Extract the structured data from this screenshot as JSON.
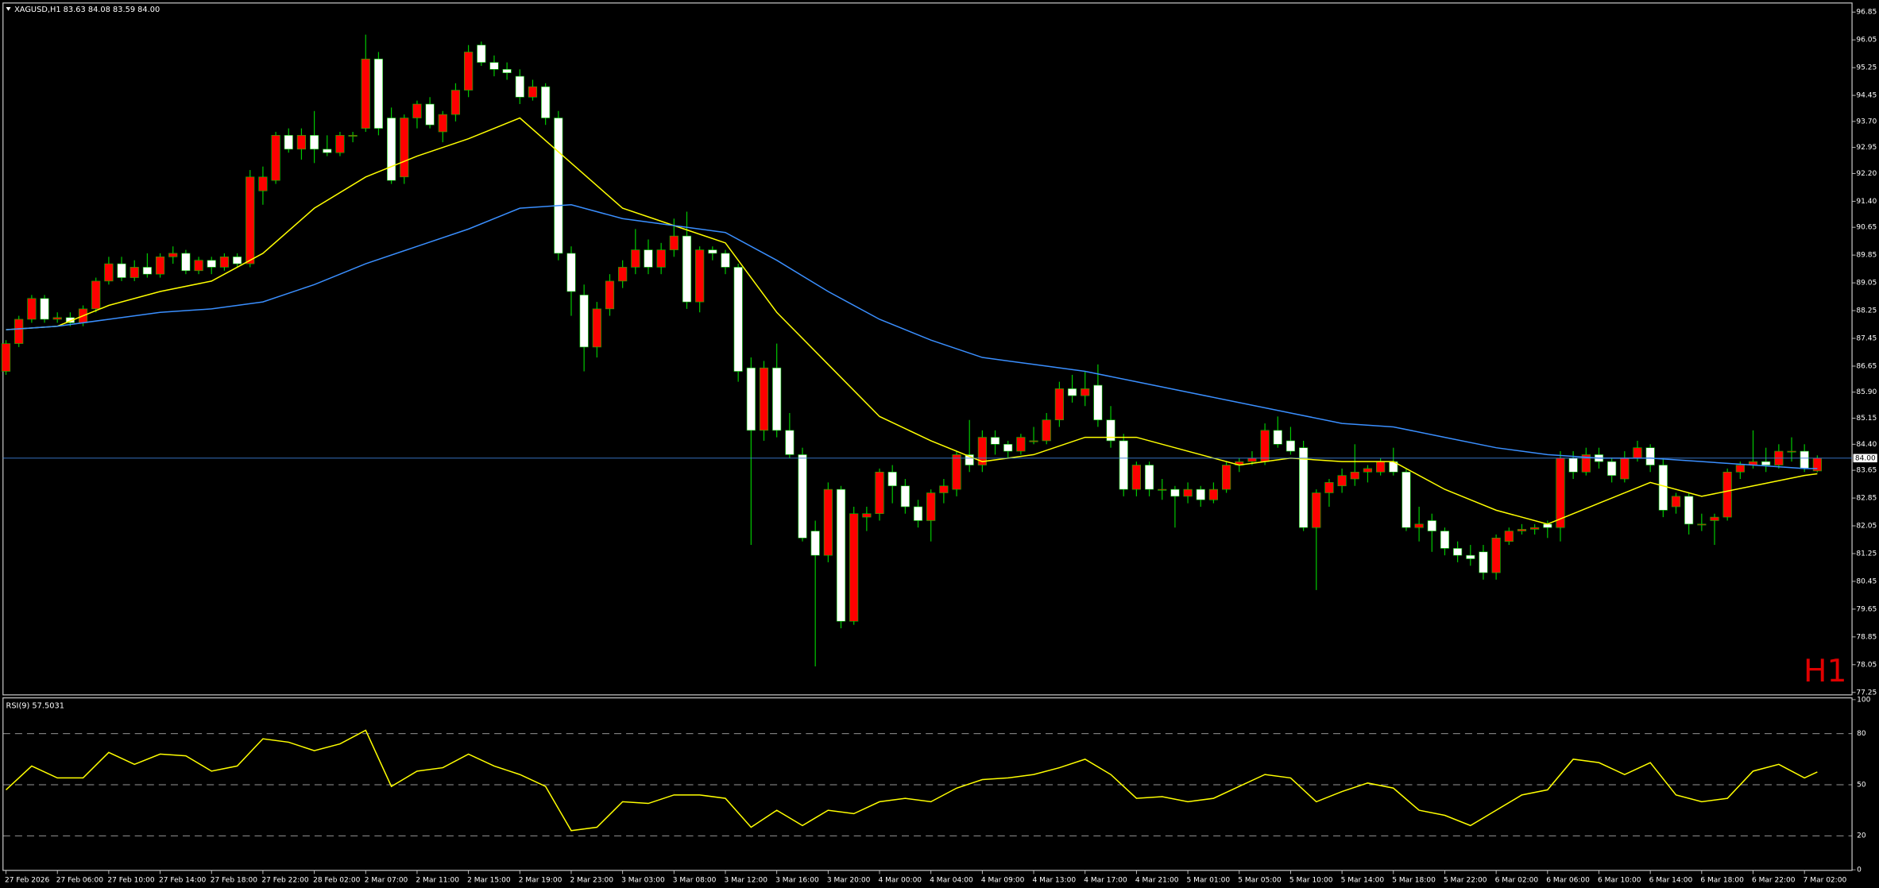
{
  "chart_data": {
    "type": "candlestick",
    "title": "XAGUSD,H1  83.63 84.08 83.59 84.00",
    "annotation": "H1",
    "annotation_color": "#e00000",
    "bull_color": "#ff0000",
    "bear_color": "#ffffff",
    "wick_color": "#00c800",
    "categories": [
      "27 Feb 2026",
      null,
      null,
      null,
      "27 Feb 06:00",
      null,
      null,
      null,
      "27 Feb 10:00",
      null,
      null,
      null,
      "27 Feb 14:00",
      null,
      null,
      null,
      "27 Feb 18:00",
      null,
      null,
      null,
      "27 Feb 22:00",
      null,
      null,
      null,
      "28 Feb 02:00",
      null,
      null,
      null,
      "2 Mar 07:00",
      null,
      null,
      null,
      "2 Mar 11:00",
      null,
      null,
      null,
      "2 Mar 15:00",
      null,
      null,
      null,
      "2 Mar 19:00",
      null,
      null,
      null,
      "2 Mar 23:00",
      null,
      null,
      null,
      "3 Mar 03:00",
      null,
      null,
      null,
      "3 Mar 08:00",
      null,
      null,
      null,
      "3 Mar 12:00",
      null,
      null,
      null,
      "3 Mar 16:00",
      null,
      null,
      null,
      "3 Mar 20:00",
      null,
      null,
      null,
      "4 Mar 00:00",
      null,
      null,
      null,
      "4 Mar 04:00",
      null,
      null,
      null,
      "4 Mar 09:00",
      null,
      null,
      null,
      "4 Mar 13:00",
      null,
      null,
      null,
      "4 Mar 17:00",
      null,
      null,
      null,
      "4 Mar 21:00",
      null,
      null,
      null,
      "5 Mar 01:00",
      null,
      null,
      null,
      "5 Mar 05:00",
      null,
      null,
      null,
      "5 Mar 10:00",
      null,
      null,
      null,
      "5 Mar 14:00",
      null,
      null,
      null,
      "5 Mar 18:00",
      null,
      null,
      null,
      "5 Mar 22:00",
      null,
      null,
      null,
      "6 Mar 02:00",
      null,
      null,
      null,
      "6 Mar 06:00",
      null,
      null,
      null,
      "6 Mar 10:00",
      null,
      null,
      null,
      "6 Mar 14:00",
      null,
      null,
      null,
      "6 Mar 18:00",
      null,
      null,
      null,
      "6 Mar 22:00",
      null,
      null,
      null,
      "7 Mar 02:00",
      null
    ],
    "ohlc": [
      [
        86.5,
        87.4,
        86.4,
        87.3
      ],
      [
        87.3,
        88.1,
        87.2,
        88.0
      ],
      [
        88.0,
        88.7,
        87.9,
        88.6
      ],
      [
        88.6,
        88.7,
        87.9,
        88.0
      ],
      [
        88.0,
        88.2,
        87.9,
        88.05
      ],
      [
        88.05,
        88.2,
        87.8,
        87.9
      ],
      [
        87.9,
        88.4,
        87.8,
        88.3
      ],
      [
        88.3,
        89.2,
        88.2,
        89.1
      ],
      [
        89.1,
        89.8,
        89.0,
        89.6
      ],
      [
        89.6,
        89.8,
        89.1,
        89.2
      ],
      [
        89.2,
        89.7,
        89.1,
        89.5
      ],
      [
        89.5,
        89.9,
        89.2,
        89.3
      ],
      [
        89.3,
        89.9,
        89.2,
        89.8
      ],
      [
        89.8,
        90.1,
        89.6,
        89.9
      ],
      [
        89.9,
        90.0,
        89.3,
        89.4
      ],
      [
        89.4,
        89.8,
        89.3,
        89.7
      ],
      [
        89.7,
        89.8,
        89.3,
        89.5
      ],
      [
        89.5,
        89.9,
        89.4,
        89.8
      ],
      [
        89.8,
        89.9,
        89.5,
        89.6
      ],
      [
        89.6,
        92.3,
        89.5,
        92.1
      ],
      [
        91.7,
        92.4,
        91.3,
        92.1
      ],
      [
        92.0,
        93.4,
        91.9,
        93.3
      ],
      [
        93.3,
        93.5,
        92.8,
        92.9
      ],
      [
        92.9,
        93.5,
        92.6,
        93.3
      ],
      [
        93.3,
        94.0,
        92.5,
        92.9
      ],
      [
        92.9,
        93.3,
        92.7,
        92.8
      ],
      [
        92.8,
        93.4,
        92.7,
        93.3
      ],
      [
        93.3,
        93.4,
        93.1,
        93.3
      ],
      [
        93.5,
        96.2,
        93.4,
        95.5
      ],
      [
        95.5,
        95.7,
        93.3,
        93.5
      ],
      [
        93.8,
        94.1,
        91.9,
        92.0
      ],
      [
        92.1,
        93.9,
        91.9,
        93.8
      ],
      [
        93.8,
        94.3,
        93.5,
        94.2
      ],
      [
        94.2,
        94.4,
        93.5,
        93.6
      ],
      [
        93.4,
        94.0,
        93.1,
        93.9
      ],
      [
        93.9,
        94.8,
        93.7,
        94.6
      ],
      [
        94.6,
        95.9,
        94.4,
        95.7
      ],
      [
        95.9,
        96.0,
        95.3,
        95.4
      ],
      [
        95.4,
        95.6,
        95.0,
        95.2
      ],
      [
        95.2,
        95.4,
        94.9,
        95.1
      ],
      [
        95.0,
        95.2,
        94.2,
        94.4
      ],
      [
        94.4,
        94.9,
        94.3,
        94.7
      ],
      [
        94.7,
        94.8,
        93.6,
        93.8
      ],
      [
        93.8,
        94.0,
        89.7,
        89.9
      ],
      [
        89.9,
        90.1,
        88.1,
        88.8
      ],
      [
        88.7,
        89.0,
        86.5,
        87.2
      ],
      [
        87.2,
        88.5,
        86.9,
        88.3
      ],
      [
        88.3,
        89.3,
        88.1,
        89.1
      ],
      [
        89.1,
        89.7,
        88.9,
        89.5
      ],
      [
        89.5,
        90.6,
        89.3,
        90.0
      ],
      [
        90.0,
        90.3,
        89.3,
        89.5
      ],
      [
        89.5,
        90.2,
        89.3,
        90.0
      ],
      [
        90.0,
        90.9,
        89.8,
        90.4
      ],
      [
        90.4,
        91.1,
        88.3,
        88.5
      ],
      [
        88.5,
        90.1,
        88.2,
        90.0
      ],
      [
        90.0,
        90.1,
        89.7,
        89.9
      ],
      [
        89.9,
        90.0,
        89.3,
        89.5
      ],
      [
        89.5,
        89.6,
        86.2,
        86.5
      ],
      [
        86.6,
        86.9,
        81.5,
        84.8
      ],
      [
        84.8,
        86.8,
        84.5,
        86.6
      ],
      [
        86.6,
        87.3,
        84.6,
        84.8
      ],
      [
        84.8,
        85.3,
        84.0,
        84.1
      ],
      [
        84.1,
        84.3,
        81.6,
        81.7
      ],
      [
        81.9,
        82.2,
        78.0,
        81.2
      ],
      [
        81.2,
        83.3,
        81.0,
        83.1
      ],
      [
        83.1,
        83.2,
        79.1,
        79.3
      ],
      [
        79.3,
        82.6,
        79.2,
        82.4
      ],
      [
        82.3,
        82.6,
        81.9,
        82.4
      ],
      [
        82.4,
        83.7,
        82.2,
        83.6
      ],
      [
        83.6,
        83.8,
        82.7,
        83.2
      ],
      [
        83.2,
        83.4,
        82.4,
        82.6
      ],
      [
        82.6,
        82.8,
        82.0,
        82.2
      ],
      [
        82.2,
        83.1,
        81.6,
        83.0
      ],
      [
        83.0,
        83.4,
        82.7,
        83.2
      ],
      [
        83.1,
        84.2,
        82.9,
        84.1
      ],
      [
        84.1,
        85.1,
        83.6,
        83.8
      ],
      [
        83.8,
        84.8,
        83.6,
        84.6
      ],
      [
        84.6,
        84.8,
        84.1,
        84.4
      ],
      [
        84.4,
        84.5,
        84.0,
        84.2
      ],
      [
        84.2,
        84.7,
        84.1,
        84.6
      ],
      [
        84.5,
        84.9,
        84.4,
        84.5
      ],
      [
        84.5,
        85.3,
        84.4,
        85.1
      ],
      [
        85.1,
        86.2,
        84.9,
        86.0
      ],
      [
        86.0,
        86.4,
        85.6,
        85.8
      ],
      [
        85.8,
        86.5,
        85.5,
        86.0
      ],
      [
        86.1,
        86.7,
        84.9,
        85.1
      ],
      [
        85.1,
        85.5,
        84.3,
        84.5
      ],
      [
        84.5,
        84.7,
        82.9,
        83.1
      ],
      [
        83.1,
        83.9,
        82.9,
        83.8
      ],
      [
        83.8,
        83.9,
        82.9,
        83.1
      ],
      [
        83.1,
        83.4,
        82.8,
        83.1
      ],
      [
        83.1,
        83.2,
        82.0,
        82.9
      ],
      [
        82.9,
        83.3,
        82.7,
        83.1
      ],
      [
        83.1,
        83.2,
        82.6,
        82.8
      ],
      [
        82.8,
        83.3,
        82.7,
        83.1
      ],
      [
        83.1,
        83.9,
        83.0,
        83.8
      ],
      [
        83.8,
        84.0,
        83.6,
        83.9
      ],
      [
        83.9,
        84.2,
        83.8,
        84.0
      ],
      [
        83.9,
        85.0,
        83.8,
        84.8
      ],
      [
        84.8,
        85.2,
        84.3,
        84.4
      ],
      [
        84.5,
        84.9,
        84.1,
        84.2
      ],
      [
        84.3,
        84.5,
        81.9,
        82.0
      ],
      [
        82.0,
        83.1,
        80.2,
        83.0
      ],
      [
        83.0,
        83.4,
        82.6,
        83.3
      ],
      [
        83.2,
        83.7,
        83.0,
        83.5
      ],
      [
        83.4,
        84.4,
        83.2,
        83.6
      ],
      [
        83.6,
        83.8,
        83.3,
        83.7
      ],
      [
        83.6,
        84.0,
        83.5,
        83.9
      ],
      [
        83.9,
        84.3,
        83.5,
        83.6
      ],
      [
        83.6,
        83.7,
        81.9,
        82.0
      ],
      [
        82.0,
        82.6,
        81.6,
        82.1
      ],
      [
        82.2,
        82.4,
        81.3,
        81.9
      ],
      [
        81.9,
        82.0,
        81.2,
        81.4
      ],
      [
        81.4,
        81.6,
        81.0,
        81.2
      ],
      [
        81.2,
        81.5,
        80.9,
        81.1
      ],
      [
        81.3,
        81.5,
        80.5,
        80.7
      ],
      [
        80.7,
        81.8,
        80.5,
        81.7
      ],
      [
        81.6,
        82.0,
        81.5,
        81.9
      ],
      [
        81.9,
        82.1,
        81.8,
        81.95
      ],
      [
        81.95,
        82.1,
        81.8,
        82.0
      ],
      [
        82.1,
        82.2,
        81.7,
        82.0
      ],
      [
        82.0,
        84.2,
        81.6,
        84.0
      ],
      [
        84.0,
        84.2,
        83.4,
        83.6
      ],
      [
        83.6,
        84.3,
        83.5,
        84.1
      ],
      [
        84.1,
        84.3,
        83.7,
        83.9
      ],
      [
        83.9,
        84.0,
        83.3,
        83.5
      ],
      [
        83.4,
        84.2,
        83.3,
        84.0
      ],
      [
        84.0,
        84.5,
        83.9,
        84.3
      ],
      [
        84.3,
        84.4,
        83.6,
        83.8
      ],
      [
        83.8,
        84.0,
        82.3,
        82.5
      ],
      [
        82.6,
        83.0,
        82.4,
        82.9
      ],
      [
        82.9,
        83.0,
        81.8,
        82.1
      ],
      [
        82.1,
        82.4,
        81.9,
        82.1
      ],
      [
        82.2,
        82.4,
        81.5,
        82.3
      ],
      [
        82.3,
        83.7,
        82.2,
        83.6
      ],
      [
        83.6,
        83.9,
        83.4,
        83.8
      ],
      [
        83.8,
        84.8,
        83.7,
        83.9
      ],
      [
        83.9,
        84.3,
        83.6,
        83.8
      ],
      [
        83.8,
        84.4,
        83.7,
        84.2
      ],
      [
        84.2,
        84.6,
        83.9,
        84.2
      ],
      [
        84.2,
        84.4,
        83.6,
        83.7
      ],
      [
        83.63,
        84.08,
        83.59,
        84.0
      ]
    ],
    "ylim": [
      77.18,
      97.06
    ],
    "yticks": [
      96.85,
      96.05,
      95.25,
      94.45,
      {
        "value": 93.7,
        "label": "93.70"
      },
      92.95,
      {
        "value": 92.2,
        "label": "92.20"
      },
      {
        "value": 91.4,
        "label": "91.40"
      },
      90.65,
      89.85,
      89.05,
      88.25,
      87.45,
      86.65,
      {
        "value": 85.9,
        "label": "85.90"
      },
      85.15,
      {
        "value": 84.4,
        "label": "84.40"
      },
      83.65,
      82.85,
      82.05,
      81.25,
      80.45,
      79.65,
      78.85,
      78.05,
      77.25
    ],
    "current": {
      "value": 84,
      "label": "84.00"
    },
    "current_color": "#3d7fd6",
    "series": [
      {
        "color": "#ffff00",
        "x": [
          0,
          4,
          8,
          12,
          16,
          20,
          24,
          28,
          32,
          36,
          40,
          44,
          48,
          52,
          56,
          60,
          64,
          68,
          72,
          76,
          80,
          84,
          88,
          92,
          96,
          100,
          104,
          108,
          112,
          116,
          120,
          124,
          128,
          132,
          136,
          140,
          141
        ],
        "values": [
          87.7,
          87.8,
          88.4,
          88.8,
          89.1,
          89.9,
          91.2,
          92.1,
          92.7,
          93.2,
          93.8,
          92.5,
          91.2,
          90.7,
          90.2,
          88.2,
          86.7,
          85.2,
          84.5,
          83.9,
          84.1,
          84.6,
          84.6,
          84.2,
          83.8,
          84.0,
          83.9,
          83.9,
          83.1,
          82.5,
          82.1,
          82.7,
          83.3,
          82.9,
          83.2,
          83.5,
          83.55
        ]
      },
      {
        "color": "#3a8fff",
        "x": [
          0,
          4,
          8,
          12,
          16,
          20,
          24,
          28,
          32,
          36,
          40,
          44,
          48,
          52,
          56,
          60,
          64,
          68,
          72,
          76,
          80,
          84,
          88,
          92,
          96,
          100,
          104,
          108,
          112,
          116,
          120,
          124,
          128,
          132,
          136,
          140,
          141
        ],
        "values": [
          87.7,
          87.8,
          88.0,
          88.2,
          88.3,
          88.5,
          89.0,
          89.6,
          90.1,
          90.6,
          91.2,
          91.3,
          90.9,
          90.7,
          90.5,
          89.7,
          88.8,
          88.0,
          87.4,
          86.9,
          86.7,
          86.5,
          86.2,
          85.9,
          85.6,
          85.3,
          85.0,
          84.9,
          84.6,
          84.3,
          84.1,
          84.0,
          84.0,
          83.9,
          83.8,
          83.7,
          83.7
        ]
      }
    ],
    "rsi": {
      "title": "RSI(9) 57.5031",
      "color": "#ffff00",
      "ylim": [
        0,
        100
      ],
      "yticks": [
        100,
        80,
        50,
        20,
        0
      ],
      "grid": "dashed",
      "x": [
        0,
        2,
        4,
        6,
        8,
        10,
        12,
        14,
        16,
        18,
        20,
        22,
        24,
        26,
        28,
        30,
        32,
        34,
        36,
        38,
        40,
        42,
        44,
        46,
        48,
        50,
        52,
        54,
        56,
        58,
        60,
        62,
        64,
        66,
        68,
        70,
        72,
        74,
        76,
        78,
        80,
        82,
        84,
        86,
        88,
        90,
        92,
        94,
        96,
        98,
        100,
        102,
        104,
        106,
        108,
        110,
        112,
        114,
        116,
        118,
        120,
        122,
        124,
        126,
        128,
        130,
        132,
        134,
        136,
        138,
        140,
        141
      ],
      "values": [
        47,
        61,
        54,
        54,
        69,
        62,
        68,
        67,
        58,
        61,
        77,
        75,
        70,
        74,
        82,
        49,
        58,
        60,
        68,
        61,
        56,
        49,
        23,
        25,
        40,
        39,
        44,
        44,
        42,
        25,
        35,
        26,
        35,
        33,
        40,
        42,
        40,
        48,
        53,
        54,
        56,
        60,
        65,
        56,
        42,
        43,
        40,
        42,
        49,
        56,
        54,
        40,
        46,
        51,
        48,
        35,
        32,
        26,
        35,
        44,
        47,
        65,
        63,
        56,
        63,
        44,
        40,
        42,
        58,
        62,
        54,
        57.5031
      ]
    }
  }
}
